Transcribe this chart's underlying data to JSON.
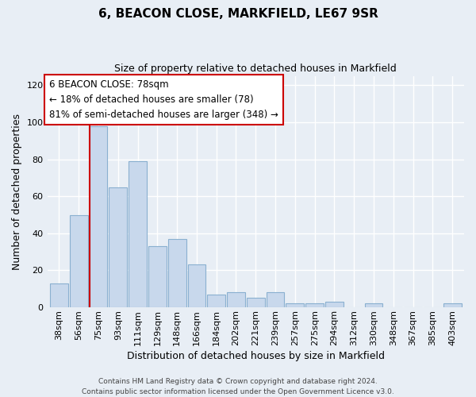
{
  "title": "6, BEACON CLOSE, MARKFIELD, LE67 9SR",
  "subtitle": "Size of property relative to detached houses in Markfield",
  "xlabel": "Distribution of detached houses by size in Markfield",
  "ylabel": "Number of detached properties",
  "bar_labels": [
    "38sqm",
    "56sqm",
    "75sqm",
    "93sqm",
    "111sqm",
    "129sqm",
    "148sqm",
    "166sqm",
    "184sqm",
    "202sqm",
    "221sqm",
    "239sqm",
    "257sqm",
    "275sqm",
    "294sqm",
    "312sqm",
    "330sqm",
    "348sqm",
    "367sqm",
    "385sqm",
    "403sqm"
  ],
  "bar_values": [
    13,
    50,
    98,
    65,
    79,
    33,
    37,
    23,
    7,
    8,
    5,
    8,
    2,
    2,
    3,
    0,
    2,
    0,
    0,
    0,
    2
  ],
  "bar_color": "#c8d8ec",
  "bar_edge_color": "#8ab0d0",
  "vline_x_index": 2,
  "vline_color": "#cc0000",
  "ylim": [
    0,
    125
  ],
  "yticks": [
    0,
    20,
    40,
    60,
    80,
    100,
    120
  ],
  "annotation_title": "6 BEACON CLOSE: 78sqm",
  "annotation_line1": "← 18% of detached houses are smaller (78)",
  "annotation_line2": "81% of semi-detached houses are larger (348) →",
  "annotation_box_color": "#ffffff",
  "annotation_box_edge": "#cc0000",
  "footer1": "Contains HM Land Registry data © Crown copyright and database right 2024.",
  "footer2": "Contains public sector information licensed under the Open Government Licence v3.0.",
  "bg_color": "#e8eef5",
  "grid_color": "#ffffff",
  "title_fontsize": 11,
  "subtitle_fontsize": 9,
  "ylabel_fontsize": 9,
  "xlabel_fontsize": 9,
  "tick_fontsize": 8,
  "footer_fontsize": 6.5
}
